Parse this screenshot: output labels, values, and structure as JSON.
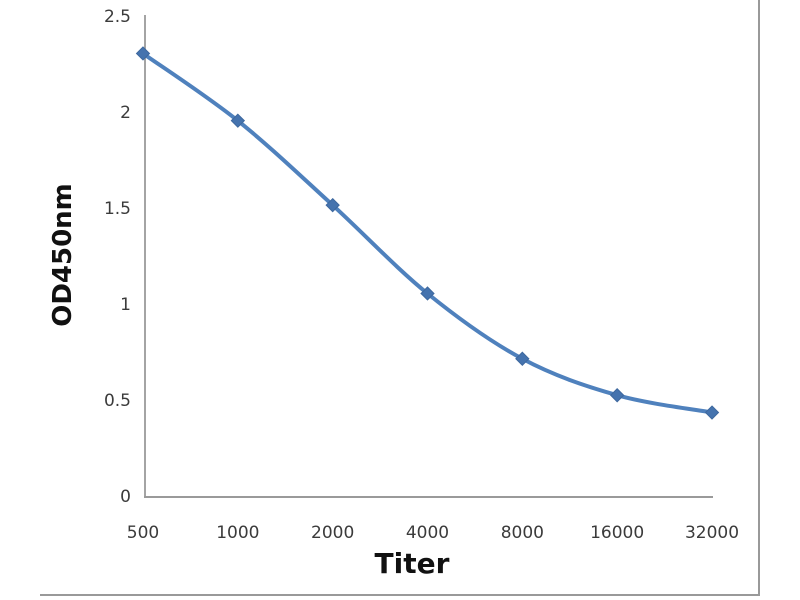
{
  "chart_data": {
    "type": "line",
    "title": "",
    "xlabel": "Titer",
    "ylabel": "OD450nm",
    "categories": [
      "500",
      "1000",
      "2000",
      "4000",
      "8000",
      "16000",
      "32000"
    ],
    "series": [
      {
        "name": "OD450nm",
        "values": [
          2.31,
          1.96,
          1.52,
          1.06,
          0.72,
          0.53,
          0.44
        ]
      }
    ],
    "ylim": [
      0,
      2.5
    ],
    "yticks": [
      0,
      0.5,
      1,
      1.5,
      2,
      2.5
    ],
    "ytick_labels": [
      "0",
      "0.5",
      "1",
      "1.5",
      "2",
      "2.5"
    ],
    "grid": false,
    "legend": false,
    "smooth": true,
    "marker_shape": "diamond",
    "colors": {
      "line": "#4F81BD",
      "marker_fill": "#4573AE",
      "marker_edge": "#3E689E",
      "axis_line": "#9a9a9a",
      "tick_label": "#3b3b3b",
      "axis_title": "#111111",
      "frame_border": "#999999"
    }
  }
}
